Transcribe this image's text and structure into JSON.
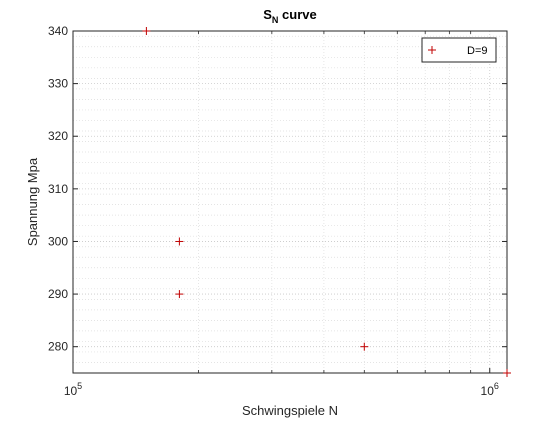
{
  "chart_data": {
    "type": "scatter",
    "title": "S",
    "title_subscript": "N",
    "title_suffix": " curve",
    "xlabel": "Schwingspiele N",
    "ylabel": "Spannung Mpa",
    "x_scale": "log",
    "xlim": [
      100000,
      1100000
    ],
    "ylim": [
      275,
      340
    ],
    "grid": true,
    "minor_grid": true,
    "legend_position": "top-right",
    "x_ticks": [
      {
        "base": "10",
        "exp": "5",
        "value": 100000
      },
      {
        "base": "10",
        "exp": "6",
        "value": 1000000
      }
    ],
    "y_ticks": [
      280,
      290,
      300,
      310,
      320,
      330,
      340
    ],
    "y_tick_labels": [
      "280",
      "290",
      "300",
      "310",
      "320",
      "330",
      "340"
    ],
    "series": [
      {
        "name": "D=9",
        "color": "#c00000",
        "marker": "plus",
        "points": [
          {
            "x": 150000,
            "y": 340
          },
          {
            "x": 180000,
            "y": 300
          },
          {
            "x": 180000,
            "y": 290
          },
          {
            "x": 500000,
            "y": 280
          },
          {
            "x": 1100000,
            "y": 275
          }
        ]
      }
    ]
  }
}
